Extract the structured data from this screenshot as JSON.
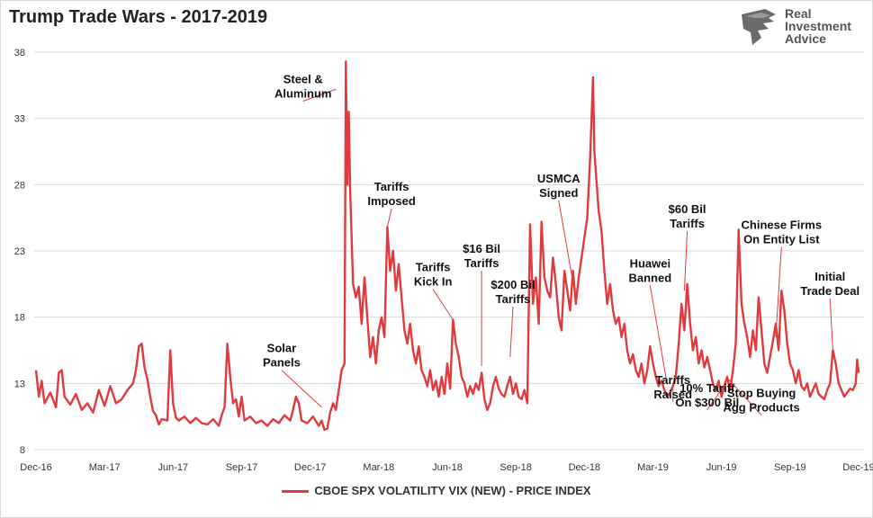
{
  "chart_data": {
    "type": "line",
    "title": "Trump Trade Wars - 2017-2019",
    "xlabel": "",
    "ylabel": "",
    "ylim": [
      8,
      38
    ],
    "yticks": [
      8,
      13,
      18,
      23,
      28,
      33,
      38
    ],
    "x_tick_labels": [
      "Dec-16",
      "Mar-17",
      "Jun-17",
      "Sep-17",
      "Dec-17",
      "Mar-18",
      "Jun-18",
      "Sep-18",
      "Dec-18",
      "Mar-19",
      "Jun-19",
      "Sep-19",
      "Dec-19"
    ],
    "series": [
      {
        "name": "CBOE SPX VOLATILITY VIX (NEW) - PRICE INDEX",
        "color": "#e03a3e",
        "points": [
          [
            0.0,
            14.0
          ],
          [
            0.1,
            12.0
          ],
          [
            0.2,
            13.2
          ],
          [
            0.3,
            11.5
          ],
          [
            0.5,
            12.3
          ],
          [
            0.7,
            11.2
          ],
          [
            0.8,
            13.8
          ],
          [
            0.9,
            14.0
          ],
          [
            1.0,
            12.0
          ],
          [
            1.2,
            11.4
          ],
          [
            1.4,
            12.2
          ],
          [
            1.6,
            11.0
          ],
          [
            1.8,
            11.5
          ],
          [
            2.0,
            10.8
          ],
          [
            2.2,
            12.5
          ],
          [
            2.4,
            11.3
          ],
          [
            2.6,
            12.8
          ],
          [
            2.8,
            11.5
          ],
          [
            3.0,
            11.8
          ],
          [
            3.2,
            12.5
          ],
          [
            3.4,
            13.0
          ],
          [
            3.5,
            14.0
          ],
          [
            3.6,
            15.8
          ],
          [
            3.7,
            16.0
          ],
          [
            3.8,
            14.2
          ],
          [
            3.9,
            13.3
          ],
          [
            4.0,
            12.0
          ],
          [
            4.1,
            10.9
          ],
          [
            4.2,
            10.6
          ],
          [
            4.3,
            9.9
          ],
          [
            4.4,
            10.3
          ],
          [
            4.6,
            10.2
          ],
          [
            4.7,
            15.5
          ],
          [
            4.8,
            11.5
          ],
          [
            4.9,
            10.4
          ],
          [
            5.0,
            10.2
          ],
          [
            5.2,
            10.5
          ],
          [
            5.4,
            10.0
          ],
          [
            5.6,
            10.4
          ],
          [
            5.8,
            10.0
          ],
          [
            6.0,
            9.9
          ],
          [
            6.2,
            10.3
          ],
          [
            6.4,
            9.8
          ],
          [
            6.5,
            10.6
          ],
          [
            6.6,
            11.2
          ],
          [
            6.7,
            16.0
          ],
          [
            6.8,
            13.5
          ],
          [
            6.9,
            11.5
          ],
          [
            7.0,
            11.8
          ],
          [
            7.1,
            10.5
          ],
          [
            7.2,
            12.0
          ],
          [
            7.3,
            10.2
          ],
          [
            7.5,
            10.5
          ],
          [
            7.7,
            10.0
          ],
          [
            7.9,
            10.2
          ],
          [
            8.1,
            9.8
          ],
          [
            8.3,
            10.3
          ],
          [
            8.5,
            10.0
          ],
          [
            8.7,
            10.6
          ],
          [
            8.9,
            10.2
          ],
          [
            9.0,
            11.0
          ],
          [
            9.1,
            12.0
          ],
          [
            9.2,
            11.5
          ],
          [
            9.3,
            10.2
          ],
          [
            9.5,
            10.0
          ],
          [
            9.7,
            10.5
          ],
          [
            9.9,
            9.8
          ],
          [
            10.0,
            10.2
          ],
          [
            10.1,
            9.5
          ],
          [
            10.2,
            9.6
          ],
          [
            10.3,
            10.8
          ],
          [
            10.4,
            11.5
          ],
          [
            10.5,
            11.0
          ],
          [
            10.6,
            12.5
          ],
          [
            10.7,
            14.0
          ],
          [
            10.8,
            14.5
          ],
          [
            10.85,
            37.3
          ],
          [
            10.9,
            28.0
          ],
          [
            10.95,
            33.5
          ],
          [
            11.0,
            27.5
          ],
          [
            11.1,
            20.5
          ],
          [
            11.2,
            19.5
          ],
          [
            11.3,
            20.3
          ],
          [
            11.4,
            17.5
          ],
          [
            11.5,
            21.0
          ],
          [
            11.6,
            18.0
          ],
          [
            11.7,
            15.0
          ],
          [
            11.8,
            16.5
          ],
          [
            11.9,
            14.5
          ],
          [
            12.0,
            17.0
          ],
          [
            12.1,
            18.0
          ],
          [
            12.2,
            16.5
          ],
          [
            12.3,
            24.8
          ],
          [
            12.4,
            21.5
          ],
          [
            12.5,
            23.0
          ],
          [
            12.6,
            20.0
          ],
          [
            12.7,
            22.0
          ],
          [
            12.8,
            19.5
          ],
          [
            12.9,
            17.0
          ],
          [
            13.0,
            16.0
          ],
          [
            13.1,
            17.5
          ],
          [
            13.2,
            15.5
          ],
          [
            13.3,
            14.5
          ],
          [
            13.4,
            15.8
          ],
          [
            13.5,
            14.0
          ],
          [
            13.6,
            13.5
          ],
          [
            13.7,
            12.8
          ],
          [
            13.8,
            14.0
          ],
          [
            13.9,
            12.5
          ],
          [
            14.0,
            13.2
          ],
          [
            14.1,
            12.0
          ],
          [
            14.2,
            13.5
          ],
          [
            14.3,
            12.2
          ],
          [
            14.4,
            14.5
          ],
          [
            14.5,
            12.6
          ],
          [
            14.6,
            17.8
          ],
          [
            14.7,
            16.0
          ],
          [
            14.8,
            15.0
          ],
          [
            14.9,
            13.5
          ],
          [
            15.0,
            13.0
          ],
          [
            15.1,
            12.0
          ],
          [
            15.2,
            12.8
          ],
          [
            15.3,
            12.2
          ],
          [
            15.4,
            13.0
          ],
          [
            15.5,
            12.5
          ],
          [
            15.6,
            13.8
          ],
          [
            15.7,
            11.8
          ],
          [
            15.8,
            11.0
          ],
          [
            15.9,
            11.5
          ],
          [
            16.0,
            12.8
          ],
          [
            16.1,
            13.5
          ],
          [
            16.2,
            12.6
          ],
          [
            16.3,
            12.2
          ],
          [
            16.4,
            12.0
          ],
          [
            16.5,
            12.8
          ],
          [
            16.6,
            13.5
          ],
          [
            16.7,
            12.2
          ],
          [
            16.8,
            13.0
          ],
          [
            16.9,
            12.0
          ],
          [
            17.0,
            11.8
          ],
          [
            17.1,
            12.5
          ],
          [
            17.2,
            11.5
          ],
          [
            17.3,
            25.0
          ],
          [
            17.4,
            19.0
          ],
          [
            17.5,
            21.0
          ],
          [
            17.6,
            17.5
          ],
          [
            17.7,
            25.2
          ],
          [
            17.8,
            21.0
          ],
          [
            17.9,
            20.0
          ],
          [
            18.0,
            19.5
          ],
          [
            18.1,
            22.5
          ],
          [
            18.2,
            20.5
          ],
          [
            18.3,
            18.0
          ],
          [
            18.4,
            17.0
          ],
          [
            18.5,
            21.5
          ],
          [
            18.6,
            20.0
          ],
          [
            18.7,
            18.5
          ],
          [
            18.8,
            21.5
          ],
          [
            18.9,
            19.0
          ],
          [
            19.0,
            21.0
          ],
          [
            19.1,
            22.5
          ],
          [
            19.2,
            24.0
          ],
          [
            19.3,
            25.5
          ],
          [
            19.4,
            30.0
          ],
          [
            19.5,
            36.1
          ],
          [
            19.55,
            30.5
          ],
          [
            19.6,
            29.0
          ],
          [
            19.7,
            26.0
          ],
          [
            19.8,
            24.5
          ],
          [
            19.9,
            21.5
          ],
          [
            20.0,
            19.0
          ],
          [
            20.1,
            20.5
          ],
          [
            20.2,
            18.5
          ],
          [
            20.3,
            17.5
          ],
          [
            20.4,
            18.0
          ],
          [
            20.5,
            16.5
          ],
          [
            20.6,
            17.5
          ],
          [
            20.7,
            15.5
          ],
          [
            20.8,
            14.5
          ],
          [
            20.9,
            15.2
          ],
          [
            21.0,
            14.0
          ],
          [
            21.1,
            13.5
          ],
          [
            21.2,
            14.5
          ],
          [
            21.3,
            13.0
          ],
          [
            21.4,
            14.0
          ],
          [
            21.5,
            15.8
          ],
          [
            21.6,
            14.5
          ],
          [
            21.7,
            13.5
          ],
          [
            21.8,
            12.8
          ],
          [
            21.9,
            13.2
          ],
          [
            22.0,
            12.5
          ],
          [
            22.1,
            12.0
          ],
          [
            22.2,
            12.3
          ],
          [
            22.3,
            12.8
          ],
          [
            22.4,
            13.5
          ],
          [
            22.5,
            16.0
          ],
          [
            22.6,
            19.0
          ],
          [
            22.7,
            17.0
          ],
          [
            22.8,
            20.5
          ],
          [
            22.9,
            17.5
          ],
          [
            23.0,
            15.5
          ],
          [
            23.1,
            16.5
          ],
          [
            23.2,
            14.5
          ],
          [
            23.3,
            15.5
          ],
          [
            23.4,
            14.2
          ],
          [
            23.5,
            15.0
          ],
          [
            23.6,
            14.0
          ],
          [
            23.7,
            13.0
          ],
          [
            23.8,
            12.5
          ],
          [
            23.9,
            13.2
          ],
          [
            24.0,
            12.0
          ],
          [
            24.1,
            12.8
          ],
          [
            24.2,
            13.5
          ],
          [
            24.3,
            12.5
          ],
          [
            24.4,
            14.0
          ],
          [
            24.5,
            16.0
          ],
          [
            24.6,
            24.6
          ],
          [
            24.7,
            19.0
          ],
          [
            24.8,
            17.5
          ],
          [
            24.9,
            16.5
          ],
          [
            25.0,
            15.0
          ],
          [
            25.1,
            17.0
          ],
          [
            25.2,
            15.5
          ],
          [
            25.3,
            19.5
          ],
          [
            25.4,
            17.0
          ],
          [
            25.5,
            14.5
          ],
          [
            25.6,
            13.8
          ],
          [
            25.7,
            15.0
          ],
          [
            25.8,
            16.2
          ],
          [
            25.9,
            17.5
          ],
          [
            26.0,
            15.5
          ],
          [
            26.1,
            20.0
          ],
          [
            26.2,
            18.5
          ],
          [
            26.3,
            16.0
          ],
          [
            26.4,
            14.5
          ],
          [
            26.5,
            14.0
          ],
          [
            26.6,
            13.0
          ],
          [
            26.7,
            14.0
          ],
          [
            26.8,
            12.8
          ],
          [
            26.9,
            12.5
          ],
          [
            27.0,
            13.0
          ],
          [
            27.1,
            12.0
          ],
          [
            27.2,
            12.5
          ],
          [
            27.3,
            13.0
          ],
          [
            27.4,
            12.2
          ],
          [
            27.5,
            12.0
          ],
          [
            27.6,
            11.8
          ],
          [
            27.7,
            12.5
          ],
          [
            27.8,
            13.0
          ],
          [
            27.9,
            15.5
          ],
          [
            28.0,
            14.5
          ],
          [
            28.1,
            13.0
          ],
          [
            28.2,
            12.5
          ],
          [
            28.3,
            12.0
          ],
          [
            28.4,
            12.3
          ],
          [
            28.5,
            12.6
          ],
          [
            28.6,
            12.5
          ],
          [
            28.7,
            13.0
          ],
          [
            28.75,
            14.8
          ],
          [
            28.8,
            13.8
          ]
        ]
      }
    ],
    "annotations": [
      {
        "lines": [
          "Steel &",
          "Aluminum"
        ],
        "target": [
          10.5,
          35.2
        ],
        "anchor": [
          9.35,
          34.3
        ]
      },
      {
        "lines": [
          "Solar",
          "Panels"
        ],
        "target": [
          10.0,
          11.2
        ],
        "anchor": [
          8.6,
          14.0
        ]
      },
      {
        "lines": [
          "Tariffs",
          "Imposed"
        ],
        "target": [
          12.3,
          24.8
        ],
        "anchor": [
          12.45,
          26.2
        ]
      },
      {
        "lines": [
          "Tariffs",
          "Kick In"
        ],
        "target": [
          14.6,
          17.8
        ],
        "anchor": [
          13.9,
          20.1
        ]
      },
      {
        "lines": [
          "$16 Bil",
          "Tariffs"
        ],
        "target": [
          15.6,
          14.3
        ],
        "anchor": [
          15.6,
          21.5
        ]
      },
      {
        "lines": [
          "$200 Bil",
          "Tariffs"
        ],
        "target": [
          16.6,
          15.0
        ],
        "anchor": [
          16.7,
          18.8
        ]
      },
      {
        "lines": [
          "USMCA",
          "Signed"
        ],
        "target": [
          18.9,
          19.4
        ],
        "anchor": [
          18.3,
          26.8
        ]
      },
      {
        "lines": [
          "Huawei",
          "Banned"
        ],
        "target": [
          22.1,
          12.9
        ],
        "anchor": [
          21.5,
          20.4
        ]
      },
      {
        "lines": [
          "Tariffs",
          "Raised"
        ],
        "target": [
          22.3,
          13.0
        ],
        "anchor": [
          22.3,
          11.6
        ]
      },
      {
        "lines": [
          "$60 Bil",
          "Tariffs"
        ],
        "target": [
          22.7,
          20.0
        ],
        "anchor": [
          22.8,
          24.5
        ]
      },
      {
        "lines": [
          "10% Tariff",
          "On $300 Bil"
        ],
        "target": [
          24.15,
          13.0
        ],
        "anchor": [
          23.5,
          11.0
        ]
      },
      {
        "lines": [
          "Chinese Firms",
          "On Entity List"
        ],
        "target": [
          25.9,
          16.5
        ],
        "anchor": [
          26.1,
          23.3
        ]
      },
      {
        "lines": [
          "Stop Buying",
          "Agg Products"
        ],
        "target": [
          24.25,
          13.3
        ],
        "anchor": [
          25.4,
          10.6
        ]
      },
      {
        "lines": [
          "Initial",
          "Trade Deal"
        ],
        "target": [
          27.9,
          15.5
        ],
        "anchor": [
          27.8,
          19.4
        ]
      }
    ]
  },
  "brand": {
    "line1": "Real",
    "line2": "Investment",
    "line3": "Advice"
  },
  "colors": {
    "series": "#e03a3e",
    "grid": "#d9d9d9",
    "leader": "#e03a3e"
  }
}
